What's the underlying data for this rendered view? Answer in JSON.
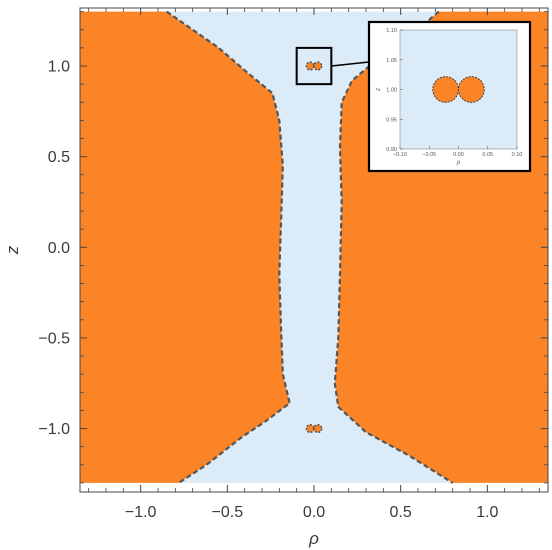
{
  "chart_data": {
    "type": "region",
    "xlabel": "ρ",
    "ylabel": "z",
    "xlim": [
      -1.35,
      1.35
    ],
    "ylim": [
      -1.35,
      1.32
    ],
    "x_ticks": [
      -1.0,
      -0.5,
      0.0,
      0.5,
      1.0
    ],
    "x_tick_labels": [
      "−1.0",
      "−0.5",
      "0.0",
      "0.5",
      "1.0"
    ],
    "y_ticks": [
      -1.0,
      -0.5,
      0.0,
      0.5,
      1.0
    ],
    "y_tick_labels": [
      "−1.0",
      "−0.5",
      "0.0",
      "0.5",
      "1.0"
    ],
    "colors": {
      "background_region": "#dcebf8",
      "filled_region": "#fb8426",
      "boundary": "#555555",
      "frame": "#444444"
    },
    "regions": [
      {
        "name": "",
        "polygon": [
          [
            -1.35,
            1.3
          ],
          [
            -0.85,
            1.3
          ],
          [
            -0.55,
            1.1
          ],
          [
            -0.38,
            0.96
          ],
          [
            -0.24,
            0.85
          ],
          [
            -0.2,
            0.7
          ],
          [
            -0.18,
            0.45
          ],
          [
            -0.19,
            0.15
          ],
          [
            -0.2,
            -0.15
          ],
          [
            -0.19,
            -0.45
          ],
          [
            -0.18,
            -0.7
          ],
          [
            -0.14,
            -0.86
          ],
          [
            -0.28,
            -0.96
          ],
          [
            -0.42,
            -1.05
          ],
          [
            -0.62,
            -1.2
          ],
          [
            -0.78,
            -1.3
          ],
          [
            -1.35,
            -1.3
          ]
        ]
      },
      {
        "name": "",
        "polygon": [
          [
            1.35,
            1.3
          ],
          [
            0.72,
            1.3
          ],
          [
            0.45,
            1.08
          ],
          [
            0.32,
            1.0
          ],
          [
            0.22,
            0.92
          ],
          [
            0.16,
            0.8
          ],
          [
            0.15,
            0.55
          ],
          [
            0.16,
            0.25
          ],
          [
            0.15,
            -0.15
          ],
          [
            0.14,
            -0.5
          ],
          [
            0.12,
            -0.75
          ],
          [
            0.14,
            -0.88
          ],
          [
            0.3,
            -1.02
          ],
          [
            0.55,
            -1.15
          ],
          [
            0.8,
            -1.3
          ],
          [
            1.35,
            -1.3
          ]
        ]
      }
    ],
    "small_regions": [
      {
        "center": [
          -0.022,
          1.0
        ],
        "radius": 0.022
      },
      {
        "center": [
          0.022,
          1.0
        ],
        "radius": 0.022
      },
      {
        "center": [
          -0.022,
          -1.0
        ],
        "radius": 0.022
      },
      {
        "center": [
          0.022,
          -1.0
        ],
        "radius": 0.022
      }
    ],
    "zoom_box": {
      "x": [
        -0.1,
        0.1
      ],
      "y": [
        0.9,
        1.1
      ]
    },
    "inset": {
      "xlabel": "ρ",
      "ylabel": "z",
      "xlim": [
        -0.1,
        0.1
      ],
      "ylim": [
        0.9,
        1.1
      ],
      "x_ticks": [
        -0.1,
        -0.05,
        0.0,
        0.05,
        0.1
      ],
      "x_tick_labels": [
        "−0.10",
        "−0.05",
        "0.00",
        "0.05",
        "0.10"
      ],
      "y_ticks": [
        0.9,
        0.95,
        1.0,
        1.05,
        1.1
      ],
      "y_tick_labels": [
        "0.90",
        "0.95",
        "1.00",
        "1.05",
        "1.10"
      ],
      "circles": [
        {
          "center": [
            -0.022,
            1.0
          ],
          "radius": 0.022
        },
        {
          "center": [
            0.022,
            1.0
          ],
          "radius": 0.022
        }
      ]
    }
  }
}
